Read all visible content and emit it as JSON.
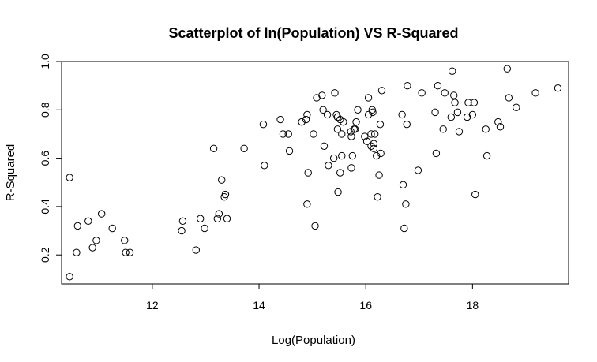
{
  "chart_data": {
    "type": "scatter",
    "title": "Scatterplot of ln(Population) VS R-Squared",
    "xlabel": "Log(Population)",
    "ylabel": "R-Squared",
    "xlim": [
      10.3,
      19.8
    ],
    "ylim": [
      0.08,
      1.0
    ],
    "xticks": [
      12,
      14,
      16,
      18
    ],
    "yticks": [
      0.2,
      0.4,
      0.6,
      0.8,
      1.0
    ],
    "xtick_labels": [
      "12",
      "14",
      "16",
      "18"
    ],
    "ytick_labels": [
      "0.2",
      "0.4",
      "0.6",
      "0.8",
      "1.0"
    ],
    "grid": false,
    "legend": "none",
    "marker": "open-circle",
    "colors": {
      "points": "#000000",
      "frame": "#000000",
      "background": "#ffffff"
    },
    "points": [
      {
        "x": 10.45,
        "y": 0.11
      },
      {
        "x": 10.45,
        "y": 0.52
      },
      {
        "x": 10.58,
        "y": 0.21
      },
      {
        "x": 10.6,
        "y": 0.32
      },
      {
        "x": 10.8,
        "y": 0.34
      },
      {
        "x": 10.88,
        "y": 0.23
      },
      {
        "x": 10.95,
        "y": 0.26
      },
      {
        "x": 11.05,
        "y": 0.37
      },
      {
        "x": 11.25,
        "y": 0.31
      },
      {
        "x": 11.48,
        "y": 0.26
      },
      {
        "x": 11.5,
        "y": 0.21
      },
      {
        "x": 11.58,
        "y": 0.21
      },
      {
        "x": 12.55,
        "y": 0.3
      },
      {
        "x": 12.57,
        "y": 0.34
      },
      {
        "x": 12.82,
        "y": 0.22
      },
      {
        "x": 12.9,
        "y": 0.35
      },
      {
        "x": 12.98,
        "y": 0.31
      },
      {
        "x": 13.15,
        "y": 0.64
      },
      {
        "x": 13.22,
        "y": 0.35
      },
      {
        "x": 13.25,
        "y": 0.37
      },
      {
        "x": 13.3,
        "y": 0.51
      },
      {
        "x": 13.35,
        "y": 0.44
      },
      {
        "x": 13.37,
        "y": 0.45
      },
      {
        "x": 13.4,
        "y": 0.35
      },
      {
        "x": 13.72,
        "y": 0.64
      },
      {
        "x": 14.08,
        "y": 0.74
      },
      {
        "x": 14.1,
        "y": 0.57
      },
      {
        "x": 14.4,
        "y": 0.76
      },
      {
        "x": 14.45,
        "y": 0.7
      },
      {
        "x": 14.55,
        "y": 0.7
      },
      {
        "x": 14.57,
        "y": 0.63
      },
      {
        "x": 14.8,
        "y": 0.75
      },
      {
        "x": 14.88,
        "y": 0.76
      },
      {
        "x": 14.9,
        "y": 0.78
      },
      {
        "x": 14.92,
        "y": 0.54
      },
      {
        "x": 14.9,
        "y": 0.41
      },
      {
        "x": 15.02,
        "y": 0.7
      },
      {
        "x": 15.05,
        "y": 0.32
      },
      {
        "x": 15.08,
        "y": 0.85
      },
      {
        "x": 15.18,
        "y": 0.86
      },
      {
        "x": 15.2,
        "y": 0.8
      },
      {
        "x": 15.22,
        "y": 0.65
      },
      {
        "x": 15.28,
        "y": 0.78
      },
      {
        "x": 15.3,
        "y": 0.57
      },
      {
        "x": 15.4,
        "y": 0.6
      },
      {
        "x": 15.42,
        "y": 0.87
      },
      {
        "x": 15.45,
        "y": 0.78
      },
      {
        "x": 15.47,
        "y": 0.77
      },
      {
        "x": 15.47,
        "y": 0.72
      },
      {
        "x": 15.48,
        "y": 0.46
      },
      {
        "x": 15.52,
        "y": 0.76
      },
      {
        "x": 15.52,
        "y": 0.54
      },
      {
        "x": 15.55,
        "y": 0.7
      },
      {
        "x": 15.55,
        "y": 0.61
      },
      {
        "x": 15.58,
        "y": 0.75
      },
      {
        "x": 15.72,
        "y": 0.71
      },
      {
        "x": 15.73,
        "y": 0.69
      },
      {
        "x": 15.73,
        "y": 0.56
      },
      {
        "x": 15.75,
        "y": 0.61
      },
      {
        "x": 15.78,
        "y": 0.72
      },
      {
        "x": 15.8,
        "y": 0.72
      },
      {
        "x": 15.82,
        "y": 0.75
      },
      {
        "x": 15.85,
        "y": 0.8
      },
      {
        "x": 15.98,
        "y": 0.69
      },
      {
        "x": 16.02,
        "y": 0.67
      },
      {
        "x": 16.05,
        "y": 0.85
      },
      {
        "x": 16.05,
        "y": 0.78
      },
      {
        "x": 16.1,
        "y": 0.7
      },
      {
        "x": 16.1,
        "y": 0.65
      },
      {
        "x": 16.12,
        "y": 0.8
      },
      {
        "x": 16.13,
        "y": 0.79
      },
      {
        "x": 16.15,
        "y": 0.66
      },
      {
        "x": 16.15,
        "y": 0.64
      },
      {
        "x": 16.17,
        "y": 0.7
      },
      {
        "x": 16.2,
        "y": 0.61
      },
      {
        "x": 16.22,
        "y": 0.44
      },
      {
        "x": 16.25,
        "y": 0.53
      },
      {
        "x": 16.27,
        "y": 0.74
      },
      {
        "x": 16.28,
        "y": 0.62
      },
      {
        "x": 16.3,
        "y": 0.88
      },
      {
        "x": 16.68,
        "y": 0.78
      },
      {
        "x": 16.7,
        "y": 0.49
      },
      {
        "x": 16.72,
        "y": 0.31
      },
      {
        "x": 16.75,
        "y": 0.41
      },
      {
        "x": 16.77,
        "y": 0.74
      },
      {
        "x": 16.78,
        "y": 0.9
      },
      {
        "x": 16.98,
        "y": 0.55
      },
      {
        "x": 17.05,
        "y": 0.87
      },
      {
        "x": 17.3,
        "y": 0.79
      },
      {
        "x": 17.32,
        "y": 0.62
      },
      {
        "x": 17.35,
        "y": 0.9
      },
      {
        "x": 17.45,
        "y": 0.72
      },
      {
        "x": 17.48,
        "y": 0.87
      },
      {
        "x": 17.6,
        "y": 0.77
      },
      {
        "x": 17.62,
        "y": 0.96
      },
      {
        "x": 17.65,
        "y": 0.86
      },
      {
        "x": 17.67,
        "y": 0.83
      },
      {
        "x": 17.72,
        "y": 0.79
      },
      {
        "x": 17.75,
        "y": 0.71
      },
      {
        "x": 17.9,
        "y": 0.77
      },
      {
        "x": 17.92,
        "y": 0.83
      },
      {
        "x": 18.0,
        "y": 0.78
      },
      {
        "x": 18.03,
        "y": 0.83
      },
      {
        "x": 18.05,
        "y": 0.45
      },
      {
        "x": 18.25,
        "y": 0.72
      },
      {
        "x": 18.27,
        "y": 0.61
      },
      {
        "x": 18.48,
        "y": 0.75
      },
      {
        "x": 18.52,
        "y": 0.73
      },
      {
        "x": 18.65,
        "y": 0.97
      },
      {
        "x": 18.68,
        "y": 0.85
      },
      {
        "x": 18.82,
        "y": 0.81
      },
      {
        "x": 19.18,
        "y": 0.87
      },
      {
        "x": 19.6,
        "y": 0.89
      }
    ]
  }
}
